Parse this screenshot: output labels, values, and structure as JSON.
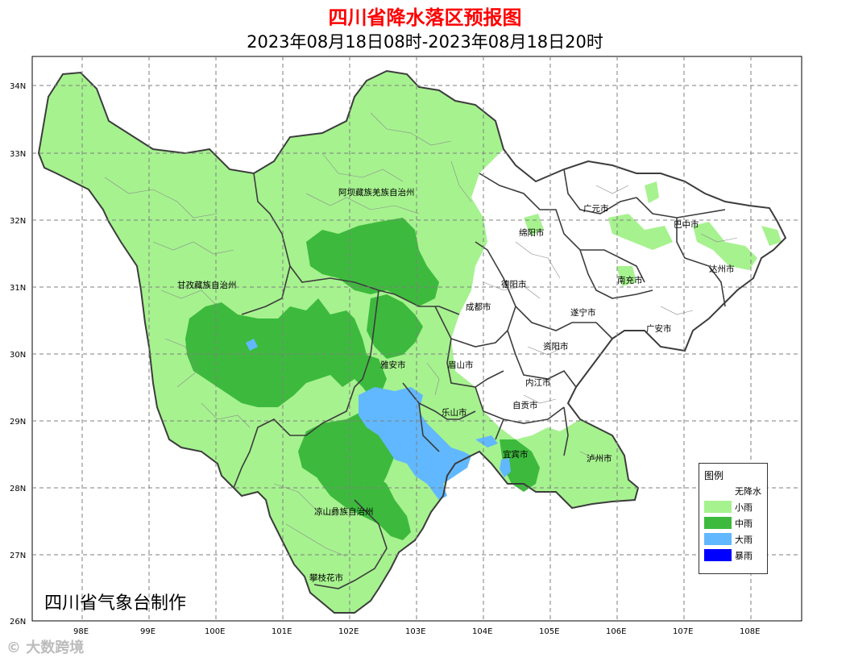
{
  "title": "四川省降水落区预报图",
  "subtitle": "2023年08月18日08时-2023年08月18日20时",
  "credit": "四川省气象台制作",
  "watermark": "大数跨境",
  "axes": {
    "lat_labels": [
      "34N",
      "33N",
      "32N",
      "31N",
      "30N",
      "29N",
      "28N",
      "27N",
      "26N"
    ],
    "lon_labels": [
      "98E",
      "99E",
      "100E",
      "101E",
      "102E",
      "103E",
      "104E",
      "105E",
      "106E",
      "107E",
      "108E"
    ]
  },
  "regions": [
    {
      "name": "阿坝藏族羌族自治州"
    },
    {
      "name": "甘孜藏族自治州"
    },
    {
      "name": "广元市"
    },
    {
      "name": "巴中市"
    },
    {
      "name": "绵阳市"
    },
    {
      "name": "达州市"
    },
    {
      "name": "德阳市"
    },
    {
      "name": "南充市"
    },
    {
      "name": "成都市"
    },
    {
      "name": "遂宁市"
    },
    {
      "name": "广安市"
    },
    {
      "name": "资阳市"
    },
    {
      "name": "雅安市"
    },
    {
      "name": "眉山市"
    },
    {
      "name": "内江市"
    },
    {
      "name": "自贡市"
    },
    {
      "name": "乐山市"
    },
    {
      "name": "宜宾市"
    },
    {
      "name": "泸州市"
    },
    {
      "name": "凉山彝族自治州"
    },
    {
      "name": "攀枝花市"
    }
  ],
  "legend": {
    "title": "图例",
    "items": [
      {
        "label": "无降水",
        "color": "#ffffff"
      },
      {
        "label": "小雨",
        "color": "#a6f28f"
      },
      {
        "label": "中雨",
        "color": "#3dba3d"
      },
      {
        "label": "大雨",
        "color": "#61b8ff"
      },
      {
        "label": "暴雨",
        "color": "#0000fe"
      }
    ]
  },
  "colors": {
    "border": "#3c3c3c",
    "grid": "#7f7f7f",
    "title": "#ff0000"
  }
}
